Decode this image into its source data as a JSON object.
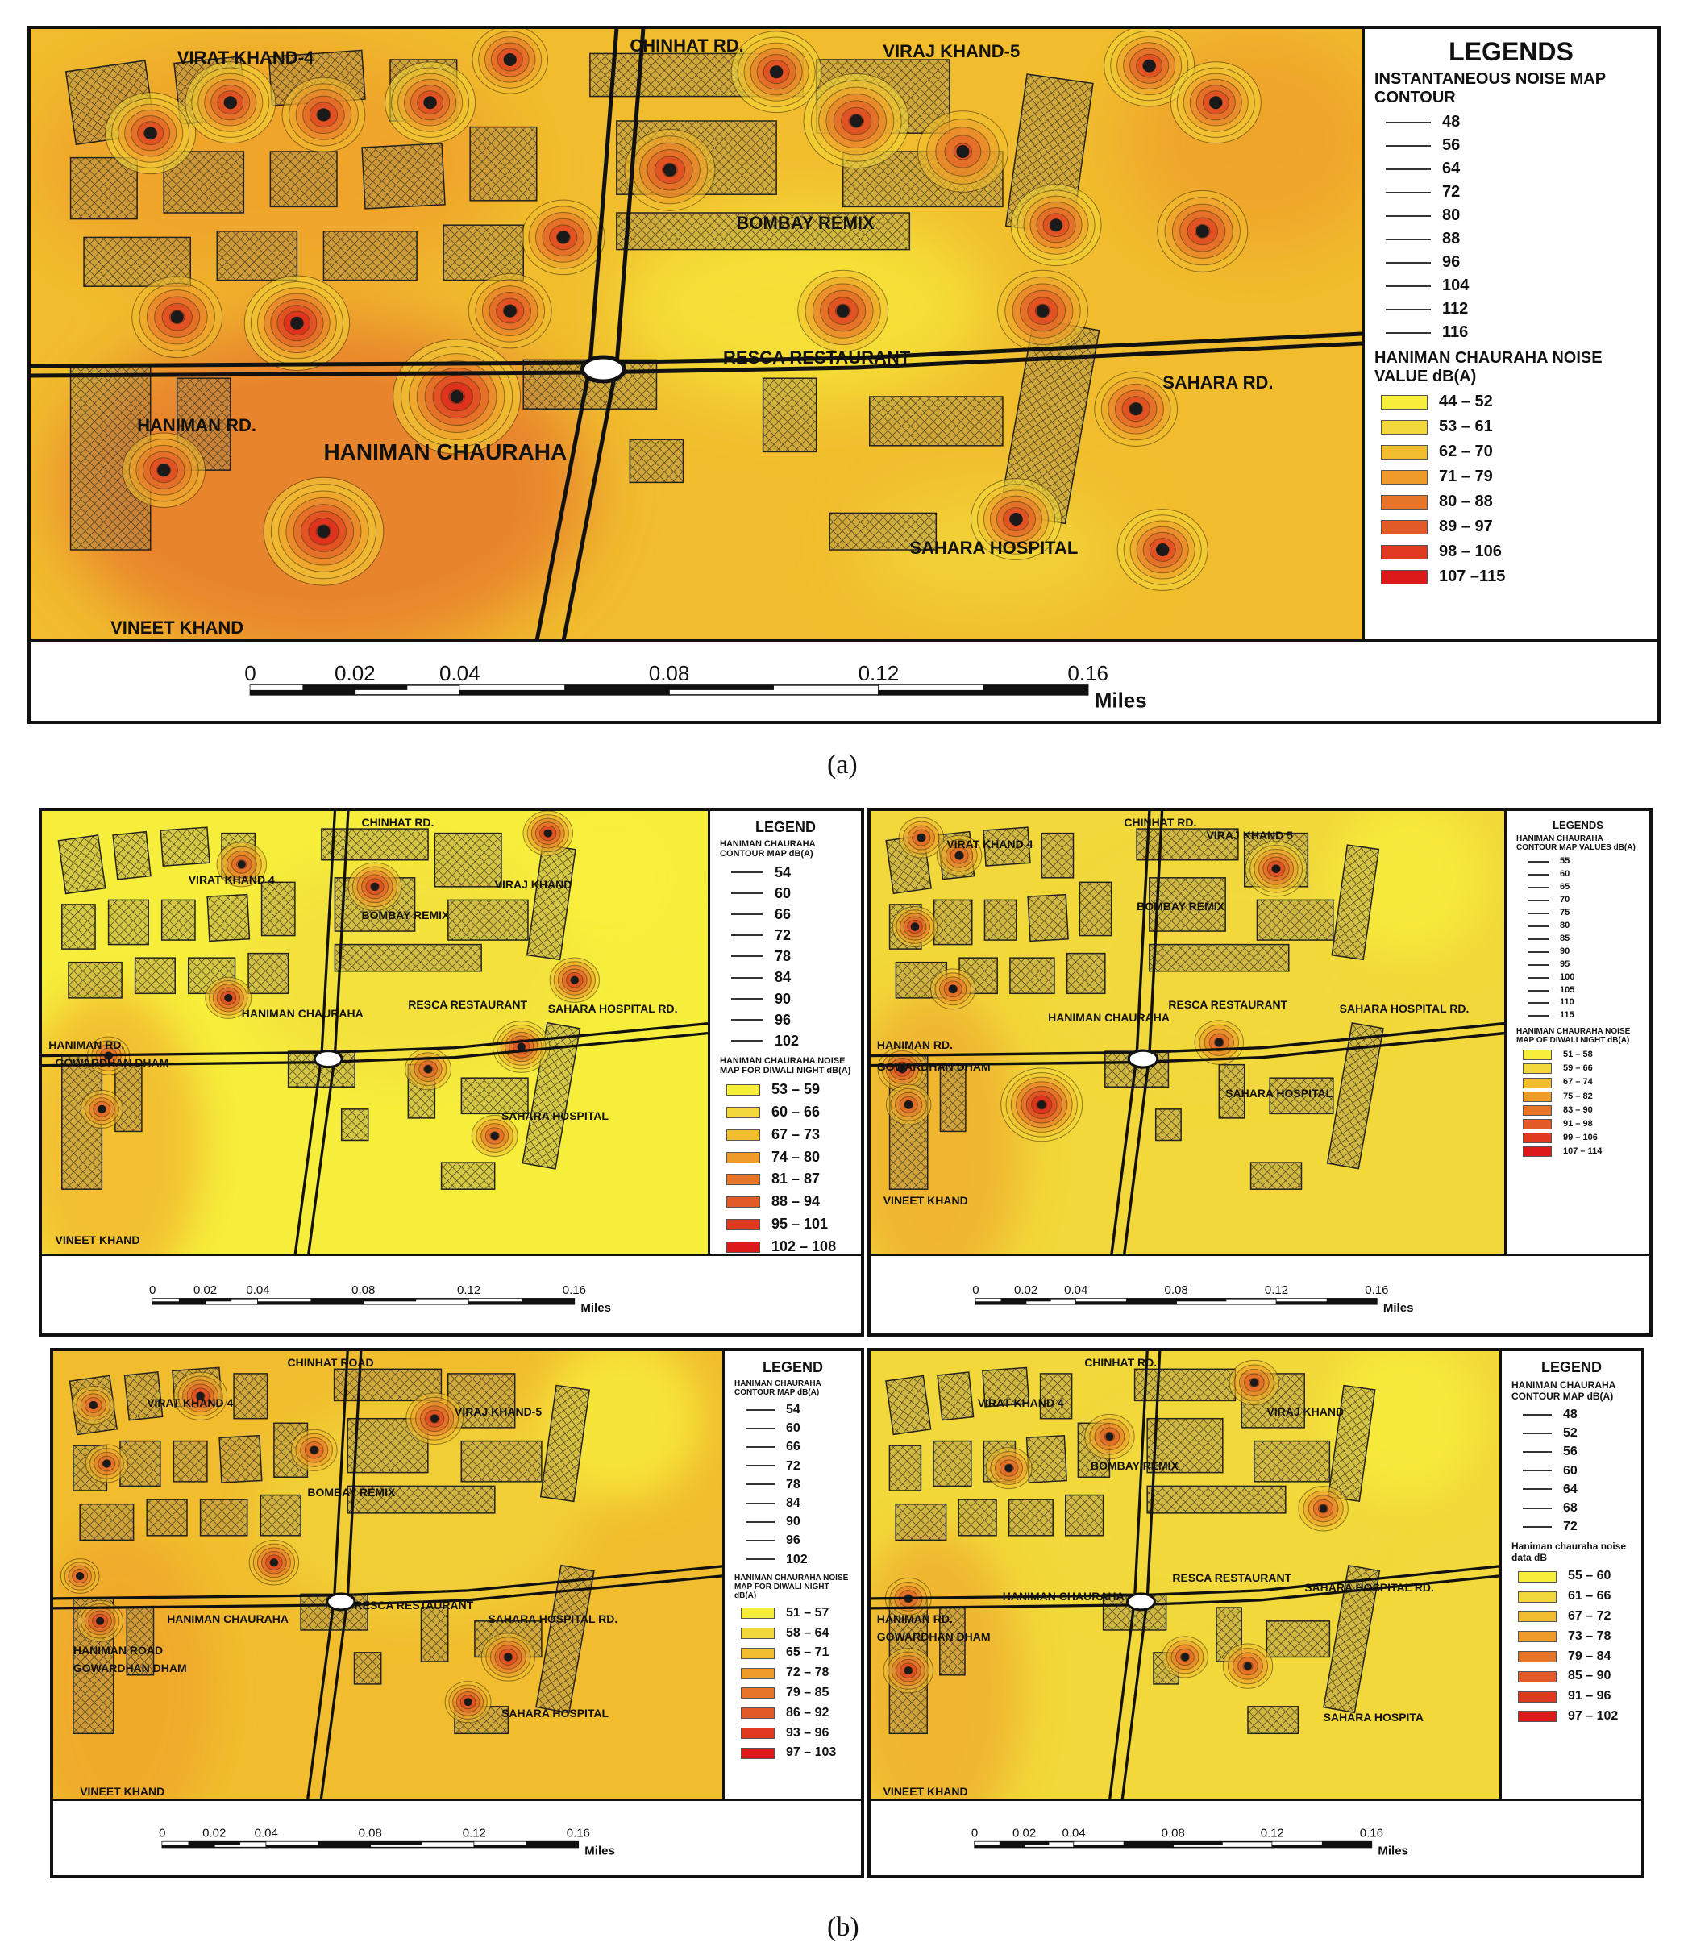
{
  "captions": {
    "a": "(a)",
    "b": "(b)"
  },
  "colors": {
    "c1": "#f7ee3c",
    "c2": "#f2d83a",
    "c3": "#f1bd2e",
    "c4": "#ee9b2a",
    "c5": "#e6752a",
    "c6": "#e25a27",
    "c7": "#df3a20",
    "c8": "#dc1a1a"
  },
  "scale": {
    "ticks": [
      "0",
      "0.02",
      "0.04",
      "0.08",
      "0.12",
      "0.16"
    ],
    "unit": "Miles"
  },
  "panels": [
    {
      "id": "a",
      "places": [
        "VIRAT KHAND-4",
        "CHINHAT RD.",
        "VIRAJ KHAND-5",
        "BOMBAY REMIX",
        "RESCA RESTAURANT",
        "SAHARA RD.",
        "HANIMAN RD.",
        "HANIMAN CHAURAHA",
        "SAHARA HOSPITAL",
        "VINEET KHAND"
      ],
      "legend": {
        "title": "LEGENDS",
        "contour_title": "INSTANTANEOUS NOISE MAP CONTOUR",
        "contours": [
          "48",
          "56",
          "64",
          "72",
          "80",
          "88",
          "96",
          "104",
          "112",
          "116"
        ],
        "classes_title": "HANIMAN CHAURAHA NOISE VALUE dB(A)",
        "classes": [
          "44 – 52",
          "53 – 61",
          "62 – 70",
          "71 – 79",
          "80 – 88",
          "89 – 97",
          "98 – 106",
          "107 –115"
        ]
      }
    },
    {
      "id": "b1",
      "places": [
        "VIRAT KHAND 4",
        "CHINHAT RD.",
        "VIRAJ KHAND",
        "BOMBAY REMIX",
        "RESCA RESTAURANT",
        "SAHARA HOSPITAL RD.",
        "HANIMAN RD.",
        "HANIMAN CHAURAHA",
        "GOWARDHAN DHAM",
        "SAHARA HOSPITAL",
        "VINEET KHAND"
      ],
      "legend": {
        "title": "LEGEND",
        "contour_title": "HANIMAN CHAURAHA CONTOUR MAP dB(A)",
        "contours": [
          "54",
          "60",
          "66",
          "72",
          "78",
          "84",
          "90",
          "96",
          "102"
        ],
        "classes_title": "HANIMAN CHAURAHA NOISE MAP FOR DIWALI NIGHT dB(A)",
        "classes": [
          "53 – 59",
          "60 – 66",
          "67 – 73",
          "74 – 80",
          "81 – 87",
          "88 – 94",
          "95 – 101",
          "102 – 108"
        ]
      }
    },
    {
      "id": "b2",
      "places": [
        "VIRAT KHAND 4",
        "CHINHAT RD.",
        "VIRAJ KHAND 5",
        "BOMBAY REMIX",
        "RESCA RESTAURANT",
        "SAHARA HOSPITAL RD.",
        "HANIMAN RD.",
        "HANIMAN CHAURAHA",
        "GOWARDHAN DHAM",
        "SAHARA HOSPITAL",
        "VINEET KHAND"
      ],
      "legend": {
        "title": "LEGENDS",
        "contour_title": "HANIMAN CHAURAHA CONTOUR MAP VALUES dB(A)",
        "contours": [
          "55",
          "60",
          "65",
          "70",
          "75",
          "80",
          "85",
          "90",
          "95",
          "100",
          "105",
          "110",
          "115"
        ],
        "classes_title": "HANIMAN CHAURAHA NOISE MAP OF DIWALI NIGHT dB(A)",
        "classes": [
          "51 – 58",
          "59 – 66",
          "67 – 74",
          "75 – 82",
          "83 – 90",
          "91 – 98",
          "99 – 106",
          "107 – 114"
        ]
      }
    },
    {
      "id": "b3",
      "places": [
        "VIRAT KHAND 4",
        "CHINHAT ROAD",
        "VIRAJ KHAND-5",
        "BOMBAY REMIX",
        "RESCA RESTAURANT",
        "SAHARA HOSPITAL RD.",
        "HANIMAN ROAD",
        "HANIMAN CHAURAHA",
        "GOWARDHAN DHAM",
        "SAHARA HOSPITAL",
        "VINEET KHAND"
      ],
      "legend": {
        "title": "LEGEND",
        "contour_title": "HANIMAN CHAURAHA CONTOUR MAP dB(A)",
        "contours": [
          "54",
          "60",
          "66",
          "72",
          "78",
          "84",
          "90",
          "96",
          "102"
        ],
        "classes_title": "HANIMAN CHAURAHA NOISE MAP FOR DIWALI NIGHT dB(A)",
        "classes": [
          "51 – 57",
          "58 – 64",
          "65 – 71",
          "72 – 78",
          "79 – 85",
          "86 – 92",
          "93 – 96",
          "97 – 103"
        ]
      }
    },
    {
      "id": "b4",
      "places": [
        "VIRAT KHAND 4",
        "CHINHAT RD.",
        "VIRAJ KHAND",
        "BOMBAY REMIX",
        "RESCA RESTAURANT",
        "SAHARA HOSPITAL RD.",
        "HANIMAN RD.",
        "HANIMAN CHAURAHA",
        "GOWARDHAN DHAM",
        "SAHARA HOSPITA",
        "VINEET KHAND"
      ],
      "legend": {
        "title": "LEGEND",
        "contour_title": "HANIMAN CHAURAHA CONTOUR MAP dB(A)",
        "contours": [
          "48",
          "52",
          "56",
          "60",
          "64",
          "68",
          "72"
        ],
        "classes_title": "Haniman chauraha noise data dB",
        "classes": [
          "55 – 60",
          "61 – 66",
          "67 – 72",
          "73 – 78",
          "79 – 84",
          "85 – 90",
          "91 – 96",
          "97 – 102"
        ]
      }
    }
  ]
}
